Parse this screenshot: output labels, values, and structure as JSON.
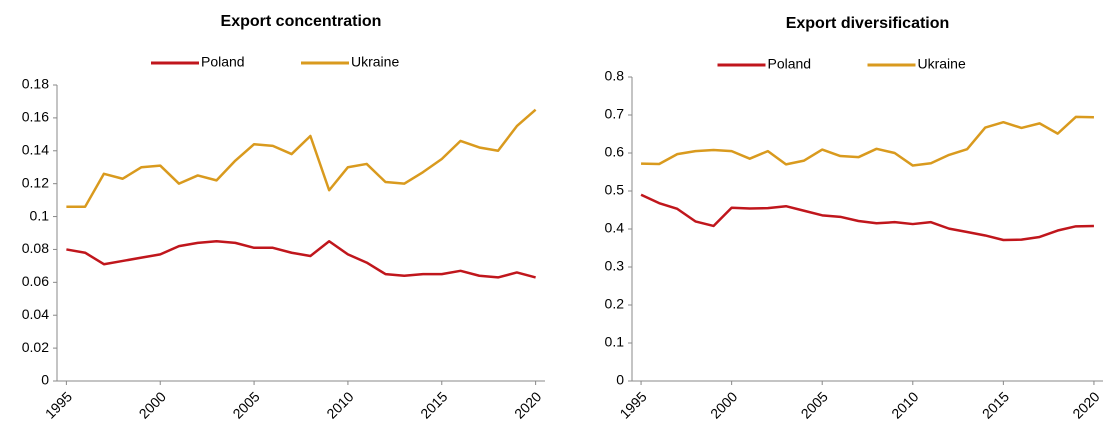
{
  "chart_data": [
    {
      "type": "line",
      "title": "Export concentration",
      "x": [
        1995,
        1996,
        1997,
        1998,
        1999,
        2000,
        2001,
        2002,
        2003,
        2004,
        2005,
        2006,
        2007,
        2008,
        2009,
        2010,
        2011,
        2012,
        2013,
        2014,
        2015,
        2016,
        2017,
        2018,
        2019,
        2020
      ],
      "series": [
        {
          "name": "Poland",
          "color": "#c0161c",
          "values": [
            0.08,
            0.078,
            0.071,
            0.073,
            0.075,
            0.077,
            0.082,
            0.084,
            0.085,
            0.084,
            0.081,
            0.081,
            0.078,
            0.076,
            0.085,
            0.077,
            0.072,
            0.065,
            0.064,
            0.065,
            0.065,
            0.067,
            0.064,
            0.063,
            0.066,
            0.063
          ]
        },
        {
          "name": "Ukraine",
          "color": "#d99a1e",
          "values": [
            0.106,
            0.106,
            0.126,
            0.123,
            0.13,
            0.131,
            0.12,
            0.125,
            0.122,
            0.134,
            0.144,
            0.143,
            0.138,
            0.149,
            0.116,
            0.13,
            0.132,
            0.121,
            0.12,
            0.127,
            0.135,
            0.146,
            0.142,
            0.14,
            0.155,
            0.165
          ]
        }
      ],
      "xlim": [
        1994.5,
        2020.5
      ],
      "xticks": [
        1995,
        2000,
        2005,
        2010,
        2015,
        2020
      ],
      "ylim": [
        0,
        0.18
      ],
      "yticks": [
        0,
        0.02,
        0.04,
        0.06,
        0.08,
        0.1,
        0.12,
        0.14,
        0.16,
        0.18
      ],
      "grid": false,
      "legend": "top"
    },
    {
      "type": "line",
      "title": "Export diversification",
      "x": [
        1995,
        1996,
        1997,
        1998,
        1999,
        2000,
        2001,
        2002,
        2003,
        2004,
        2005,
        2006,
        2007,
        2008,
        2009,
        2010,
        2011,
        2012,
        2013,
        2014,
        2015,
        2016,
        2017,
        2018,
        2019,
        2020
      ],
      "series": [
        {
          "name": "Poland",
          "color": "#c0161c",
          "values": [
            0.49,
            0.468,
            0.453,
            0.42,
            0.408,
            0.456,
            0.454,
            0.455,
            0.46,
            0.448,
            0.436,
            0.432,
            0.421,
            0.415,
            0.418,
            0.413,
            0.418,
            0.401,
            0.392,
            0.383,
            0.371,
            0.372,
            0.379,
            0.396,
            0.407,
            0.408
          ]
        },
        {
          "name": "Ukraine",
          "color": "#d99a1e",
          "values": [
            0.572,
            0.571,
            0.597,
            0.605,
            0.608,
            0.605,
            0.585,
            0.605,
            0.57,
            0.58,
            0.609,
            0.592,
            0.589,
            0.611,
            0.6,
            0.567,
            0.573,
            0.595,
            0.61,
            0.667,
            0.681,
            0.666,
            0.678,
            0.651,
            0.695,
            0.694
          ]
        }
      ],
      "xlim": [
        1994.5,
        2020.5
      ],
      "xticks": [
        1995,
        2000,
        2005,
        2010,
        2015,
        2020
      ],
      "ylim": [
        0,
        0.8
      ],
      "yticks": [
        0,
        0.1,
        0.2,
        0.3,
        0.4,
        0.5,
        0.6,
        0.7,
        0.8
      ],
      "grid": false,
      "legend": "top"
    }
  ]
}
